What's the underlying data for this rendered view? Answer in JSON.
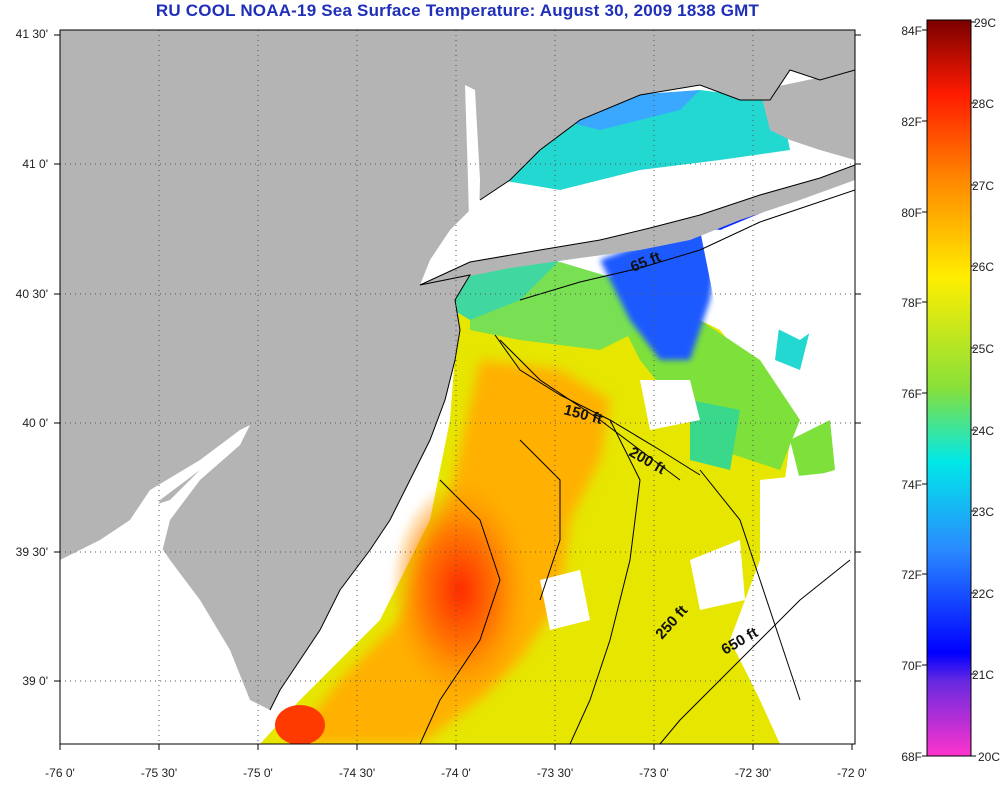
{
  "title": "RU COOL  NOAA-19  Sea Surface Temperature:  August 30, 2009 1838 GMT",
  "axes": {
    "y_labels": [
      "41 30'",
      "41 0'",
      "40 30'",
      "40 0'",
      "39 30'",
      "39 0'"
    ],
    "x_labels": [
      "-76 0'",
      "-75 30'",
      "-75 0'",
      "-74 30'",
      "-74 0'",
      "-73 30'",
      "-73 0'",
      "-72 30'",
      "-72 0'"
    ]
  },
  "colorbar": {
    "fahrenheit": [
      "84F",
      "82F",
      "80F",
      "78F",
      "76F",
      "74F",
      "72F",
      "70F",
      "68F"
    ],
    "celsius": [
      "29C",
      "28C",
      "27C",
      "26C",
      "25C",
      "24C",
      "23C",
      "22C",
      "21C",
      "20C"
    ],
    "colors": [
      "#7a0000",
      "#ff1a00",
      "#ff9a00",
      "#ffff00",
      "#7ee03a",
      "#00e8e8",
      "#2a8aff",
      "#0000ff",
      "#ff33cc"
    ]
  },
  "contours": {
    "labels": [
      "65 ft",
      "150 ft",
      "200 ft",
      "250 ft",
      "650 ft"
    ]
  },
  "colors": {
    "land": "#b4b4b4",
    "cloud": "#ffffff",
    "title": "#1f2fb8"
  }
}
